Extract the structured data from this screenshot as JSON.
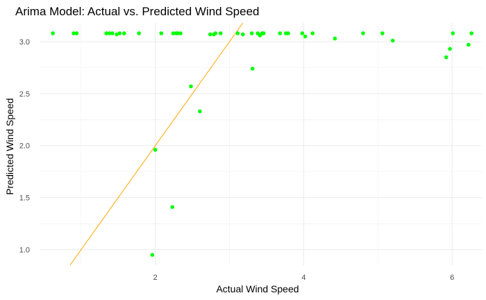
{
  "chart_data": {
    "type": "scatter",
    "title": "Arima Model: Actual vs. Predicted Wind Speed",
    "xlabel": "Actual Wind Speed",
    "ylabel": "Predicted Wind Speed",
    "xlim": [
      0.45,
      6.4
    ],
    "ylim": [
      0.85,
      3.18
    ],
    "x_ticks": [
      2,
      4,
      6
    ],
    "y_ticks": [
      1.0,
      1.5,
      2.0,
      2.5,
      3.0
    ],
    "x_tick_labels": [
      "2",
      "4",
      "6"
    ],
    "y_tick_labels": [
      "1.0",
      "1.5",
      "2.0",
      "2.5",
      "3.0"
    ],
    "grid": true,
    "legend": "none",
    "point_color": "#00ff00",
    "line_color": "#ffa500",
    "reference_line": {
      "type": "identity",
      "slope": 1,
      "intercept": 0,
      "x_start": 0.85,
      "x_end": 3.18
    },
    "series": [
      {
        "points": [
          [
            0.62,
            3.08
          ],
          [
            0.9,
            3.08
          ],
          [
            0.94,
            3.08
          ],
          [
            1.34,
            3.08
          ],
          [
            1.38,
            3.08
          ],
          [
            1.42,
            3.08
          ],
          [
            1.48,
            3.07
          ],
          [
            1.52,
            3.08
          ],
          [
            1.58,
            3.08
          ],
          [
            1.78,
            3.08
          ],
          [
            2.08,
            3.08
          ],
          [
            2.24,
            3.08
          ],
          [
            2.28,
            3.08
          ],
          [
            2.3,
            3.08
          ],
          [
            2.34,
            3.08
          ],
          [
            2.74,
            3.07
          ],
          [
            2.79,
            3.07
          ],
          [
            2.81,
            3.08
          ],
          [
            2.88,
            3.08
          ],
          [
            3.11,
            3.08
          ],
          [
            3.18,
            3.07
          ],
          [
            3.3,
            3.08
          ],
          [
            3.38,
            3.08
          ],
          [
            3.41,
            3.06
          ],
          [
            3.44,
            3.08
          ],
          [
            3.46,
            3.08
          ],
          [
            3.68,
            3.08
          ],
          [
            3.76,
            3.08
          ],
          [
            3.79,
            3.08
          ],
          [
            3.98,
            3.08
          ],
          [
            4.02,
            3.05
          ],
          [
            4.12,
            3.08
          ],
          [
            4.42,
            3.03
          ],
          [
            4.8,
            3.08
          ],
          [
            5.06,
            3.08
          ],
          [
            5.2,
            3.01
          ],
          [
            6.01,
            3.08
          ],
          [
            6.26,
            3.08
          ],
          [
            5.92,
            2.85
          ],
          [
            5.97,
            2.93
          ],
          [
            6.22,
            2.97
          ],
          [
            3.31,
            2.74
          ],
          [
            2.48,
            2.57
          ],
          [
            2.6,
            2.33
          ],
          [
            2.0,
            1.96
          ],
          [
            2.23,
            1.41
          ],
          [
            1.96,
            0.95
          ]
        ]
      }
    ]
  }
}
